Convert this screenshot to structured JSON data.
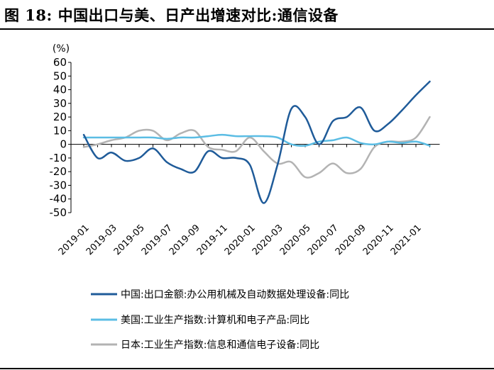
{
  "title": "图 18: 中国出口与美、日产出增速对比:通信设备",
  "chart_data": {
    "type": "line",
    "unit_label": "(%)",
    "ylim": [
      -50,
      60
    ],
    "yticks": [
      -50,
      -40,
      -30,
      -20,
      -10,
      0,
      10,
      20,
      30,
      40,
      50,
      60
    ],
    "x": [
      "2019-01",
      "2019-02",
      "2019-03",
      "2019-04",
      "2019-05",
      "2019-06",
      "2019-07",
      "2019-08",
      "2019-09",
      "2019-10",
      "2019-11",
      "2019-12",
      "2020-01",
      "2020-02",
      "2020-03",
      "2020-04",
      "2020-05",
      "2020-06",
      "2020-07",
      "2020-08",
      "2020-09",
      "2020-10",
      "2020-11",
      "2020-12",
      "2021-01",
      "2021-02"
    ],
    "xtick_labels": [
      "2019-01",
      "2019-03",
      "2019-05",
      "2019-07",
      "2019-09",
      "2019-11",
      "2020-01",
      "2020-03",
      "2020-05",
      "2020-07",
      "2020-09",
      "2020-11",
      "2021-01"
    ],
    "grid": false,
    "legend_position": "bottom",
    "series": [
      {
        "name": "中国:出口金额:办公用机械及自动数据处理设备:同比",
        "color": "#1f5b99",
        "values": [
          7,
          -10,
          -6,
          -12,
          -10,
          -3,
          -13,
          -18,
          -20,
          -5,
          -10,
          -10,
          -15,
          -43,
          -15,
          26,
          20,
          0,
          17,
          20,
          27,
          10,
          15,
          25,
          36,
          46
        ]
      },
      {
        "name": "美国:工业生产指数:计算机和电子产品:同比",
        "color": "#5bbde4",
        "values": [
          5,
          5,
          5,
          5,
          5,
          5,
          4,
          5,
          5,
          6,
          7,
          6,
          6,
          6,
          5,
          0,
          -1,
          2,
          3,
          5,
          1,
          0,
          2,
          1,
          2,
          -1
        ]
      },
      {
        "name": "日本:工业生产指数:信息和通信电子设备:同比",
        "color": "#b3b3b3",
        "values": [
          -2,
          0,
          3,
          5,
          10,
          10,
          3,
          8,
          10,
          -2,
          -4,
          -5,
          5,
          -5,
          -14,
          -13,
          -24,
          -21,
          -14,
          -21,
          -18,
          -2,
          2,
          2,
          5,
          20
        ]
      }
    ]
  }
}
